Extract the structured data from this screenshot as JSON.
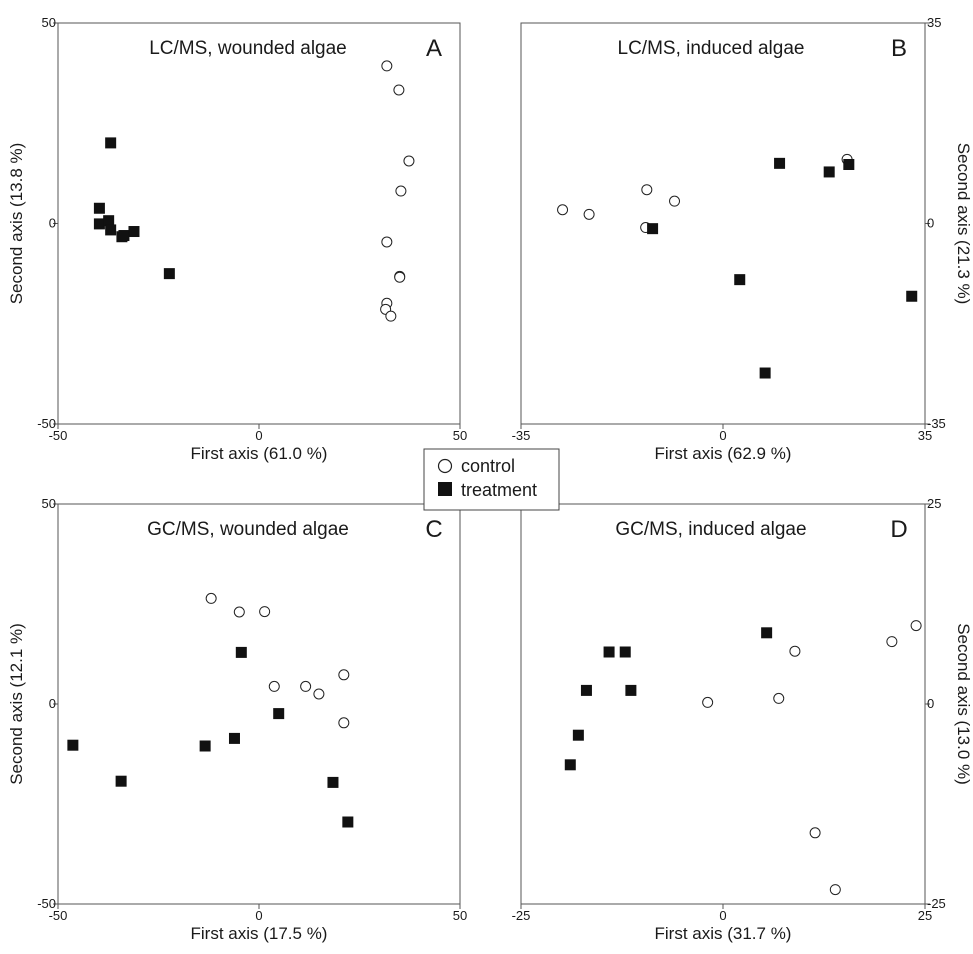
{
  "legend": {
    "entries": [
      {
        "label": "control",
        "marker": "open-circle"
      },
      {
        "label": "treatment",
        "marker": "filled-square"
      }
    ]
  },
  "colors": {
    "marker_fill": "#111111",
    "frame": "#555555",
    "text": "#1a1a1a"
  },
  "chart_data": [
    {
      "id": "A",
      "type": "scatter",
      "title": "LC/MS, wounded algae",
      "letter": "A",
      "xlabel": "First axis (61.0 %)",
      "ylabel": "Second axis (13.8 %)",
      "ylabel_side": "left",
      "xlim": [
        -50,
        50
      ],
      "ylim": [
        -50,
        50
      ],
      "xticks": [
        "-50",
        "0",
        "50"
      ],
      "yticks": [
        "50",
        "0",
        "-50"
      ],
      "series": [
        {
          "name": "control",
          "marker": "open-circle",
          "points": [
            [
              31.8,
              39.3
            ],
            [
              34.8,
              33.3
            ],
            [
              37.3,
              15.6
            ],
            [
              35.3,
              8.1
            ],
            [
              31.8,
              -4.6
            ],
            [
              35.0,
              -13.2
            ],
            [
              35.0,
              -13.4
            ],
            [
              31.8,
              -19.9
            ],
            [
              31.5,
              -21.4
            ],
            [
              32.8,
              -23.1
            ]
          ]
        },
        {
          "name": "treatment",
          "marker": "filled-square",
          "points": [
            [
              -36.9,
              20.1
            ],
            [
              -39.7,
              3.8
            ],
            [
              -39.7,
              -0.1
            ],
            [
              -37.4,
              0.7
            ],
            [
              -36.9,
              -1.6
            ],
            [
              -34.1,
              -3.3
            ],
            [
              -33.6,
              -3.0
            ],
            [
              -31.1,
              -2.0
            ],
            [
              -22.3,
              -12.5
            ]
          ]
        }
      ]
    },
    {
      "id": "B",
      "type": "scatter",
      "title": "LC/MS, induced algae",
      "letter": "B",
      "xlabel": "First axis (62.9 %)",
      "ylabel": "Second axis (21.3 %)",
      "ylabel_side": "right",
      "xlim": [
        -35,
        35
      ],
      "ylim": [
        -35,
        35
      ],
      "xticks": [
        "-35",
        "0",
        "35"
      ],
      "yticks": [
        "35",
        "0",
        "-35"
      ],
      "series": [
        {
          "name": "control",
          "marker": "open-circle",
          "points": [
            [
              -27.8,
              2.4
            ],
            [
              -23.2,
              1.6
            ],
            [
              -13.2,
              5.9
            ],
            [
              -13.4,
              -0.7
            ],
            [
              -8.4,
              3.9
            ],
            [
              21.5,
              11.2
            ]
          ]
        },
        {
          "name": "treatment",
          "marker": "filled-square",
          "points": [
            [
              -12.2,
              -0.9
            ],
            [
              2.9,
              -9.8
            ],
            [
              7.3,
              -26.1
            ],
            [
              9.8,
              10.5
            ],
            [
              18.4,
              9.0
            ],
            [
              21.8,
              10.3
            ],
            [
              32.7,
              -12.7
            ]
          ]
        }
      ]
    },
    {
      "id": "C",
      "type": "scatter",
      "title": "GC/MS, wounded algae",
      "letter": "C",
      "xlabel": "First axis (17.5 %)",
      "ylabel": "Second axis (12.1 %)",
      "ylabel_side": "left",
      "xlim": [
        -50,
        50
      ],
      "ylim": [
        -50,
        50
      ],
      "xticks": [
        "-50",
        "0",
        "50"
      ],
      "yticks": [
        "50",
        "0",
        "-50"
      ],
      "series": [
        {
          "name": "control",
          "marker": "open-circle",
          "points": [
            [
              -11.9,
              26.4
            ],
            [
              -4.9,
              23.0
            ],
            [
              1.4,
              23.1
            ],
            [
              3.8,
              4.4
            ],
            [
              11.6,
              4.4
            ],
            [
              14.9,
              2.5
            ],
            [
              21.1,
              7.3
            ],
            [
              21.1,
              -4.7
            ]
          ]
        },
        {
          "name": "treatment",
          "marker": "filled-square",
          "points": [
            [
              -4.4,
              12.9
            ],
            [
              -13.4,
              -10.5
            ],
            [
              -6.1,
              -8.6
            ],
            [
              4.9,
              -2.4
            ],
            [
              -46.3,
              -10.3
            ],
            [
              -34.3,
              -19.3
            ],
            [
              18.4,
              -19.6
            ],
            [
              22.1,
              -29.5
            ]
          ]
        }
      ]
    },
    {
      "id": "D",
      "type": "scatter",
      "title": "GC/MS, induced algae",
      "letter": "D",
      "xlabel": "First axis (31.7 %)",
      "ylabel": "Second axis (13.0 %)",
      "ylabel_side": "right",
      "xlim": [
        -25,
        25
      ],
      "ylim": [
        -25,
        25
      ],
      "xticks": [
        "-25",
        "0",
        "25"
      ],
      "yticks": [
        "25",
        "0",
        "-25"
      ],
      "series": [
        {
          "name": "control",
          "marker": "open-circle",
          "points": [
            [
              -1.9,
              0.2
            ],
            [
              6.9,
              0.7
            ],
            [
              8.9,
              6.6
            ],
            [
              20.9,
              7.8
            ],
            [
              23.9,
              9.8
            ],
            [
              11.4,
              -16.1
            ],
            [
              13.9,
              -23.2
            ]
          ]
        },
        {
          "name": "treatment",
          "marker": "filled-square",
          "points": [
            [
              -14.1,
              6.5
            ],
            [
              -12.1,
              6.5
            ],
            [
              -16.9,
              1.7
            ],
            [
              -11.4,
              1.7
            ],
            [
              -17.9,
              -3.9
            ],
            [
              -18.9,
              -7.6
            ],
            [
              5.4,
              8.9
            ]
          ]
        }
      ]
    }
  ]
}
